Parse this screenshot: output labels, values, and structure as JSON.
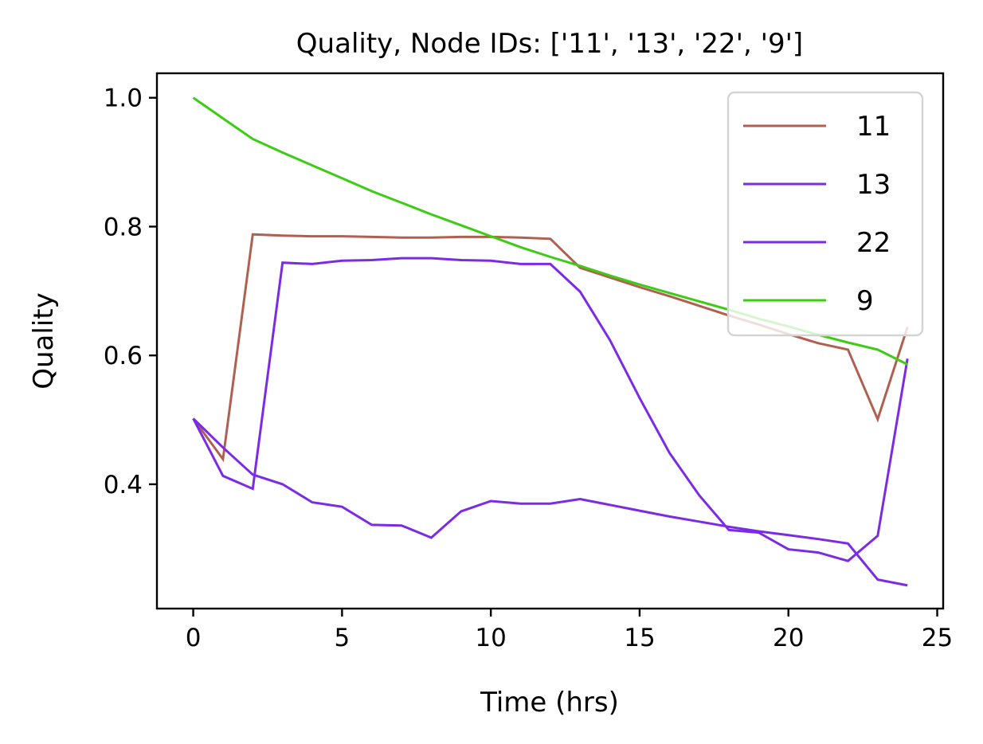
{
  "chart_data": {
    "type": "line",
    "title": "Quality, Node IDs: ['11', '13', '22', '9']",
    "xlabel": "Time (hrs)",
    "ylabel": "Quality",
    "xlim": [
      -1.22,
      25.2
    ],
    "ylim": [
      0.207,
      1.038
    ],
    "xticks": [
      0,
      5,
      10,
      15,
      20,
      25
    ],
    "xtick_labels": [
      "0",
      "5",
      "10",
      "15",
      "20",
      "25"
    ],
    "yticks": [
      0.4,
      0.6,
      0.8,
      1.0
    ],
    "ytick_labels": [
      "0.4",
      "0.6",
      "0.8",
      "1.0"
    ],
    "grid": false,
    "legend_position": "upper right",
    "x": [
      0,
      1,
      2,
      3,
      4,
      5,
      6,
      7,
      8,
      9,
      10,
      11,
      12,
      13,
      14,
      15,
      16,
      17,
      18,
      19,
      20,
      21,
      22,
      23,
      24
    ],
    "series": [
      {
        "name": "11",
        "color": "#b06050",
        "values": [
          0.502,
          0.439,
          0.788,
          0.786,
          0.785,
          0.785,
          0.784,
          0.783,
          0.783,
          0.784,
          0.784,
          0.783,
          0.781,
          0.736,
          0.721,
          0.706,
          0.692,
          0.677,
          0.662,
          0.648,
          0.633,
          0.619,
          0.609,
          0.501,
          0.644
        ]
      },
      {
        "name": "13",
        "color": "#7b2be6",
        "values": [
          0.502,
          0.413,
          0.393,
          0.744,
          0.742,
          0.747,
          0.748,
          0.751,
          0.751,
          0.748,
          0.747,
          0.742,
          0.742,
          0.699,
          0.624,
          0.534,
          0.449,
          0.383,
          0.329,
          0.325,
          0.299,
          0.294,
          0.281,
          0.32,
          0.595
        ]
      },
      {
        "name": "22",
        "color": "#7b2be6",
        "values": [
          0.502,
          0.457,
          0.415,
          0.4,
          0.372,
          0.365,
          0.337,
          0.336,
          0.317,
          0.358,
          0.374,
          0.37,
          0.37,
          0.377,
          0.368,
          0.359,
          0.35,
          0.342,
          0.334,
          0.327,
          0.321,
          0.315,
          0.308,
          0.252,
          0.243
        ]
      },
      {
        "name": "9",
        "color": "#3ccc14",
        "values": [
          1.0,
          0.968,
          0.936,
          0.915,
          0.895,
          0.875,
          0.855,
          0.837,
          0.819,
          0.802,
          0.785,
          0.768,
          0.753,
          0.739,
          0.724,
          0.71,
          0.697,
          0.684,
          0.671,
          0.657,
          0.645,
          0.632,
          0.62,
          0.609,
          0.586
        ]
      }
    ]
  },
  "legend": {
    "items": [
      {
        "label": "11",
        "color": "#b06050"
      },
      {
        "label": "13",
        "color": "#7b2be6"
      },
      {
        "label": "22",
        "color": "#7b2be6"
      },
      {
        "label": "9",
        "color": "#3ccc14"
      }
    ]
  }
}
